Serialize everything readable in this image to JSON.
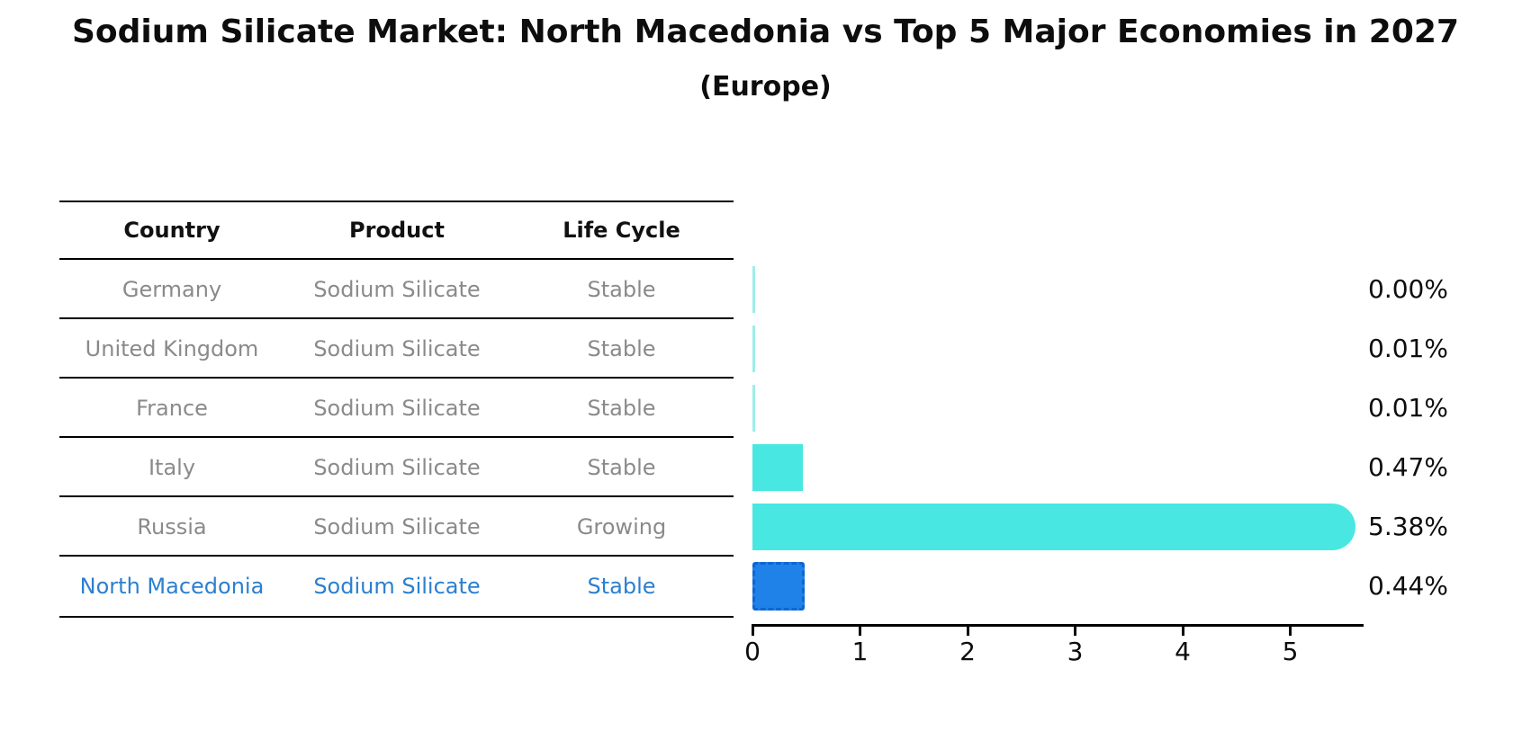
{
  "title": "Sodium Silicate Market: North Macedonia vs Top 5 Major Economies in 2027",
  "subtitle": "(Europe)",
  "table": {
    "headers": [
      "Country",
      "Product",
      "Life Cycle"
    ],
    "rows": [
      {
        "country": "Germany",
        "product": "Sodium Silicate",
        "life_cycle": "Stable",
        "value_label": "0.00%",
        "highlight": false
      },
      {
        "country": "United Kingdom",
        "product": "Sodium Silicate",
        "life_cycle": "Stable",
        "value_label": "0.01%",
        "highlight": false
      },
      {
        "country": "France",
        "product": "Sodium Silicate",
        "life_cycle": "Stable",
        "value_label": "0.01%",
        "highlight": false
      },
      {
        "country": "Italy",
        "product": "Sodium Silicate",
        "life_cycle": "Stable",
        "value_label": "0.47%",
        "highlight": false
      },
      {
        "country": "Russia",
        "product": "Sodium Silicate",
        "life_cycle": "Growing",
        "value_label": "5.38%",
        "highlight": false
      },
      {
        "country": "North Macedonia",
        "product": "Sodium Silicate",
        "life_cycle": "Stable",
        "value_label": "0.44%",
        "highlight": true
      }
    ]
  },
  "chart_data": {
    "type": "bar",
    "orientation": "horizontal",
    "title": "Sodium Silicate Market: North Macedonia vs Top 5 Major Economies in 2027 (Europe)",
    "categories": [
      "Germany",
      "United Kingdom",
      "France",
      "Italy",
      "Russia",
      "North Macedonia"
    ],
    "values": [
      0.0,
      0.01,
      0.01,
      0.47,
      5.38,
      0.44
    ],
    "value_labels": [
      "0.00%",
      "0.01%",
      "0.01%",
      "0.47%",
      "5.38%",
      "0.44%"
    ],
    "xlabel": "",
    "ylabel": "",
    "xlim": [
      0,
      5.65
    ],
    "x_ticks": [
      0,
      1,
      2,
      3,
      4,
      5
    ],
    "grid": false,
    "legend": false,
    "bar_color": "#48e7e2",
    "sliver_color": "#9defe9",
    "highlight_color": "#1f82e8",
    "highlight_border_color": "#0d66d2",
    "text_color": "#0d0d0d",
    "muted_text_color": "#8a8a8a",
    "highlight_text_color": "#2b7fd0",
    "highlight_index": 5,
    "rounded_bar_index": 4
  }
}
